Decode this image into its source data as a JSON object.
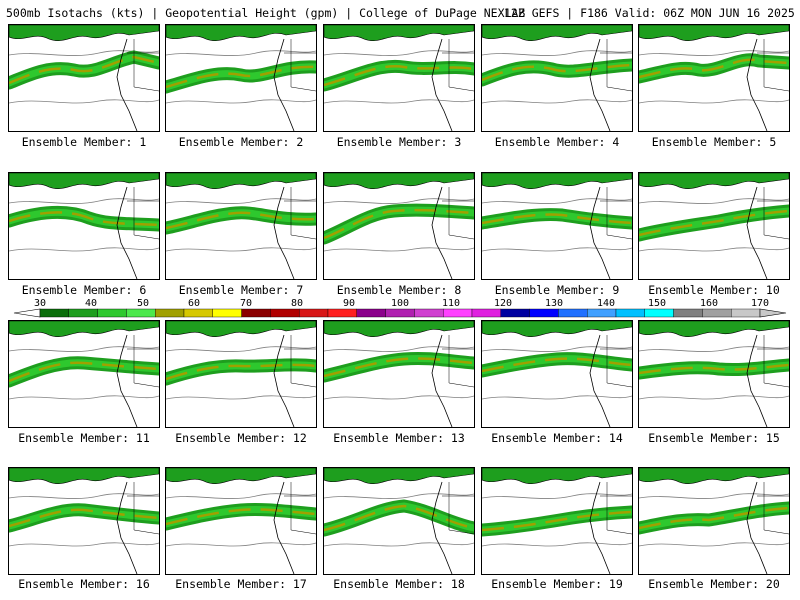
{
  "header": {
    "left": "500mb Isotachs (kts) | Geopotential Height (gpm) | College of DuPage NEXLAB",
    "right": "12Z GEFS | F186 Valid: 06Z MON JUN 16 2025"
  },
  "panels": [
    {
      "label": "Ensemble Member: 1"
    },
    {
      "label": "Ensemble Member: 2"
    },
    {
      "label": "Ensemble Member: 3"
    },
    {
      "label": "Ensemble Member: 4"
    },
    {
      "label": "Ensemble Member: 5"
    },
    {
      "label": "Ensemble Member: 6"
    },
    {
      "label": "Ensemble Member: 7"
    },
    {
      "label": "Ensemble Member: 8"
    },
    {
      "label": "Ensemble Member: 9"
    },
    {
      "label": "Ensemble Member: 10"
    },
    {
      "label": "Ensemble Member: 11"
    },
    {
      "label": "Ensemble Member: 12"
    },
    {
      "label": "Ensemble Member: 13"
    },
    {
      "label": "Ensemble Member: 14"
    },
    {
      "label": "Ensemble Member: 15"
    },
    {
      "label": "Ensemble Member: 16"
    },
    {
      "label": "Ensemble Member: 17"
    },
    {
      "label": "Ensemble Member: 18"
    },
    {
      "label": "Ensemble Member: 19"
    },
    {
      "label": "Ensemble Member: 20"
    }
  ],
  "colorbar": {
    "labels": [
      "30",
      "40",
      "50",
      "60",
      "70",
      "80",
      "90",
      "100",
      "110",
      "120",
      "130",
      "140",
      "150",
      "160",
      "170"
    ],
    "colors": [
      "#0a6e0a",
      "#1e9e1e",
      "#2ec82e",
      "#4ce84c",
      "#a0a000",
      "#d6c800",
      "#ffff00",
      "#8b0000",
      "#b00000",
      "#d81818",
      "#ff2020",
      "#8b008b",
      "#b020b0",
      "#d040d0",
      "#ff40ff",
      "#e020e0",
      "#0000a0",
      "#0000ff",
      "#2070ff",
      "#40a0ff",
      "#00c0ff",
      "#00ffff",
      "#808080",
      "#a0a0a0",
      "#c8c8c8"
    ]
  },
  "colors": {
    "jet_outer": "#1e9e1e",
    "jet_mid": "#2ec82e",
    "jet_core": "#a0a000",
    "jet_max": "#8b0000",
    "height_contour": "#808080",
    "coastline": "#000000"
  }
}
